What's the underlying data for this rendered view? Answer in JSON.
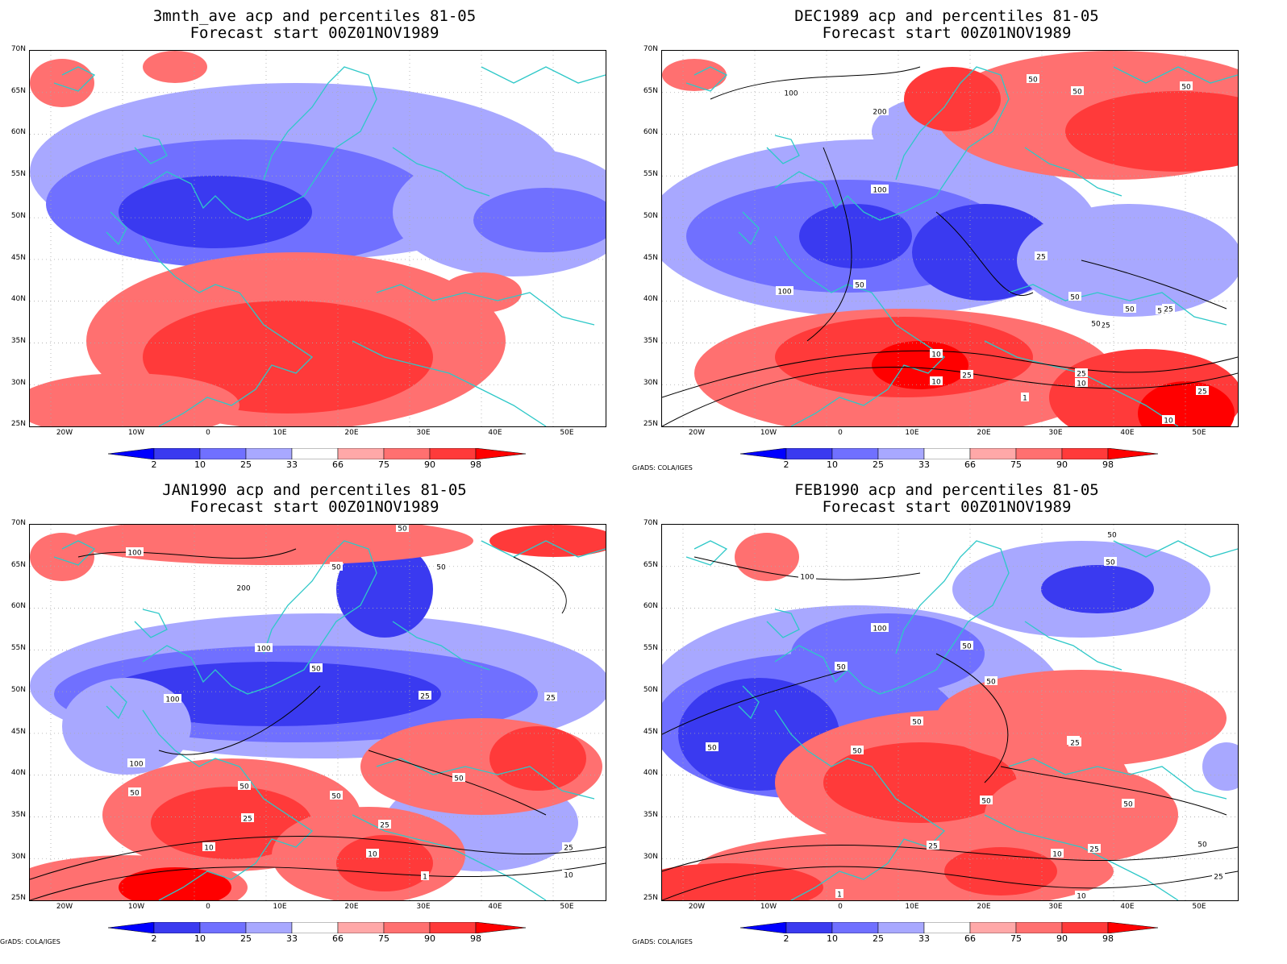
{
  "panels": [
    {
      "title": "3mnth_ave acp and percentiles 81-05",
      "subtitle": "Forecast start 00Z01NOV1989",
      "credit": "",
      "contour_labels": []
    },
    {
      "title": "DEC1989 acp and percentiles 81-05",
      "subtitle": "Forecast start 00Z01NOV1989",
      "credit": "GrADS: COLA/IGES",
      "contour_labels": [
        "100",
        "200",
        "50",
        "50",
        "50",
        "100",
        "100",
        "50",
        "25",
        "50",
        "50",
        "25",
        "50",
        "10",
        "25",
        "10",
        "1",
        "25",
        "10",
        "25",
        "50",
        "25",
        "10"
      ]
    },
    {
      "title": "JAN1990 acp and percentiles 81-05",
      "subtitle": "Forecast start 00Z01NOV1989",
      "credit": "GrADS: COLA/IGES",
      "contour_labels": [
        "100",
        "200",
        "50",
        "50",
        "50",
        "100",
        "50",
        "25",
        "25",
        "100",
        "100",
        "50",
        "50",
        "50",
        "50",
        "25",
        "25",
        "10",
        "10",
        "1",
        "25",
        "10"
      ]
    },
    {
      "title": "FEB1990 acp and percentiles 81-05",
      "subtitle": "Forecast start 00Z01NOV1989",
      "credit": "GrADS: COLA/IGES",
      "contour_labels": [
        "100",
        "50",
        "50",
        "100",
        "50",
        "50",
        "50",
        "50",
        "50",
        "50",
        "50",
        "50",
        "25",
        "25",
        "10",
        "25",
        "50",
        "1",
        "10",
        "25",
        "50"
      ]
    }
  ],
  "lat_ticks": [
    "70N",
    "65N",
    "60N",
    "55N",
    "50N",
    "45N",
    "40N",
    "35N",
    "30N",
    "25N"
  ],
  "lon_ticks": [
    "20W",
    "10W",
    "0",
    "10E",
    "20E",
    "30E",
    "40E",
    "50E"
  ],
  "colorbar": {
    "labels": [
      "2",
      "10",
      "25",
      "33",
      "66",
      "75",
      "90",
      "98"
    ],
    "colors": [
      "#0000ff",
      "#3a3af0",
      "#7070ff",
      "#a8a8ff",
      "#ffffff",
      "#ffa8a8",
      "#ff7070",
      "#ff3a3a",
      "#ff0000"
    ]
  },
  "colors": {
    "coast": "#2ec8c8",
    "grid": "#aaaaaa",
    "contour": "#000000"
  }
}
